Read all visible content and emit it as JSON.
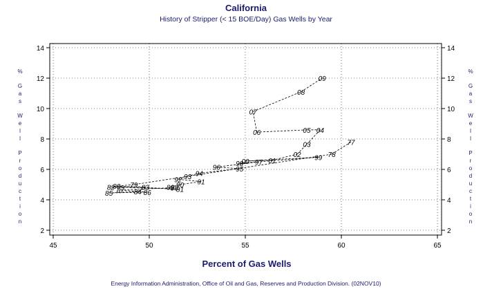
{
  "chart_data": {
    "type": "line",
    "title": "California",
    "subtitle": "History of Stripper (< 15 BOE/Day) Gas Wells by Year",
    "xlabel": "Percent of Gas Wells",
    "ylabel": "% Gas Well Production",
    "footer": "Energy Information Administration, Office of Oil and Gas, Reserves and Production Division. (02NOV10)",
    "xlim": [
      45,
      65
    ],
    "ylim": [
      2,
      14
    ],
    "xticks": [
      45,
      50,
      55,
      60,
      65
    ],
    "yticks": [
      2,
      4,
      6,
      8,
      10,
      12,
      14
    ],
    "grid": true,
    "line_style": "dashed",
    "points": [
      {
        "label": "77",
        "x": 60.5,
        "y": 7.8
      },
      {
        "label": "78",
        "x": 59.5,
        "y": 7.0
      },
      {
        "label": "79",
        "x": 49.2,
        "y": 5.0
      },
      {
        "label": "80",
        "x": 48.3,
        "y": 4.9
      },
      {
        "label": "81",
        "x": 51.6,
        "y": 4.7
      },
      {
        "label": "82",
        "x": 48.0,
        "y": 4.85
      },
      {
        "label": "83",
        "x": 49.8,
        "y": 4.85
      },
      {
        "label": "84",
        "x": 49.4,
        "y": 4.55
      },
      {
        "label": "85",
        "x": 47.9,
        "y": 4.45
      },
      {
        "label": "86",
        "x": 49.9,
        "y": 4.5
      },
      {
        "label": "87",
        "x": 48.5,
        "y": 4.65
      },
      {
        "label": "88",
        "x": 51.3,
        "y": 4.8
      },
      {
        "label": "89",
        "x": 51.1,
        "y": 4.85
      },
      {
        "label": "90",
        "x": 51.6,
        "y": 5.0
      },
      {
        "label": "91",
        "x": 52.7,
        "y": 5.2
      },
      {
        "label": "92",
        "x": 51.5,
        "y": 5.35
      },
      {
        "label": "93",
        "x": 52.0,
        "y": 5.55
      },
      {
        "label": "94",
        "x": 52.6,
        "y": 5.75
      },
      {
        "label": "95",
        "x": 54.7,
        "y": 6.05
      },
      {
        "label": "96",
        "x": 53.5,
        "y": 6.15
      },
      {
        "label": "97",
        "x": 55.7,
        "y": 6.5
      },
      {
        "label": "98",
        "x": 54.7,
        "y": 6.4
      },
      {
        "label": "99",
        "x": 58.8,
        "y": 6.8
      },
      {
        "label": "00",
        "x": 55.0,
        "y": 6.55
      },
      {
        "label": "01",
        "x": 56.4,
        "y": 6.6
      },
      {
        "label": "02",
        "x": 57.7,
        "y": 7.0
      },
      {
        "label": "03",
        "x": 58.2,
        "y": 7.65
      },
      {
        "label": "04",
        "x": 58.9,
        "y": 8.6
      },
      {
        "label": "05",
        "x": 58.2,
        "y": 8.6
      },
      {
        "label": "06",
        "x": 55.6,
        "y": 8.45
      },
      {
        "label": "07",
        "x": 55.4,
        "y": 9.8
      },
      {
        "label": "08",
        "x": 57.9,
        "y": 11.1
      },
      {
        "label": "09",
        "x": 59.0,
        "y": 12.0
      }
    ]
  }
}
